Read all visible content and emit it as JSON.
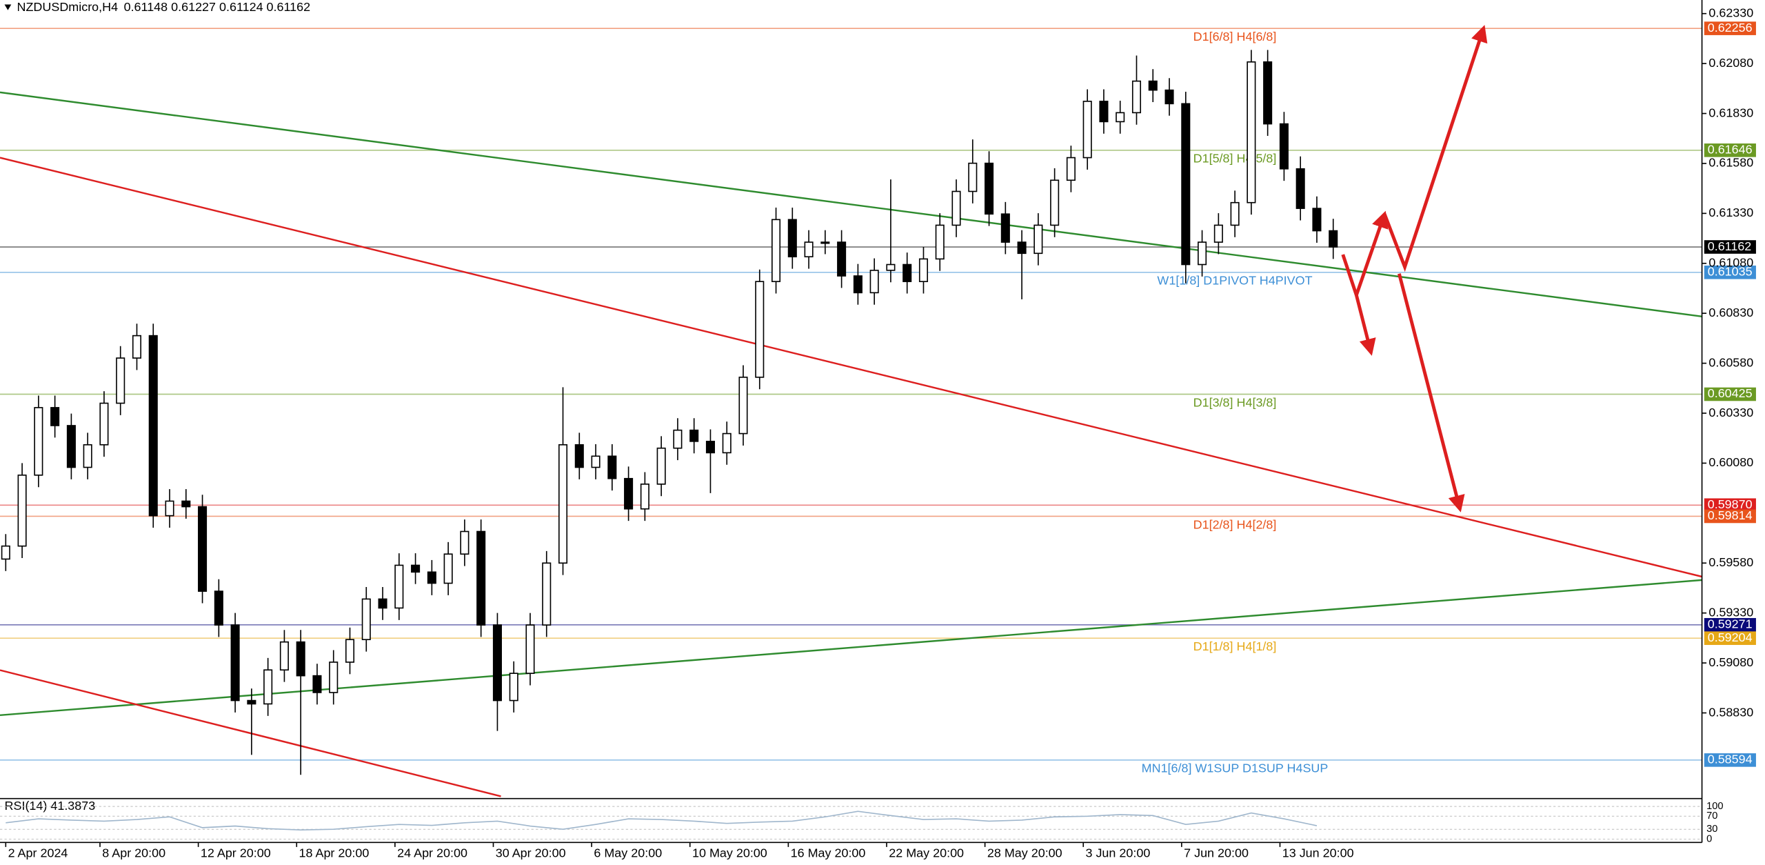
{
  "header": {
    "symbol": "NZDUSDmicro,H4",
    "ohlc": "0.61148 0.61227 0.61124 0.61162"
  },
  "chart_data": [
    {
      "type": "candlestick",
      "x": [
        0,
        4,
        8,
        12,
        16,
        20,
        24,
        28,
        32,
        36,
        40,
        44,
        48,
        52,
        56,
        60,
        64,
        68,
        72,
        76,
        80,
        84,
        88,
        92,
        96,
        100,
        104,
        108,
        112,
        116,
        120,
        124,
        128,
        132,
        136,
        140,
        144,
        148,
        152,
        156,
        160,
        164,
        168,
        172,
        176,
        180,
        184,
        188,
        192,
        196,
        200,
        204,
        208,
        212,
        216,
        220,
        224,
        228,
        232,
        236,
        240,
        244,
        248,
        252,
        256,
        260,
        264,
        268,
        272,
        276,
        280,
        284,
        288,
        292,
        296,
        300,
        304,
        308,
        312,
        316,
        320,
        324
      ],
      "open": [
        0.596,
        0.59665,
        0.6002,
        0.60358,
        0.60268,
        0.60059,
        0.60172,
        0.6038,
        0.60606,
        0.60718,
        0.59817,
        0.5989,
        0.59862,
        0.59439,
        0.5927,
        0.58892,
        0.58875,
        0.59045,
        0.59185,
        0.59016,
        0.58932,
        0.59084,
        0.59197,
        0.594,
        0.59355,
        0.59569,
        0.59535,
        0.59479,
        0.59625,
        0.59738,
        0.5927,
        0.58892,
        0.59028,
        0.5927,
        0.5958,
        0.60172,
        0.60059,
        0.60115,
        0.60003,
        0.59851,
        0.59975,
        0.60155,
        0.60245,
        0.60189,
        0.60132,
        0.60228,
        0.6051,
        0.60989,
        0.61299,
        0.61113,
        0.61186,
        0.61186,
        0.61017,
        0.60933,
        0.61045,
        0.61074,
        0.60989,
        0.61102,
        0.61271,
        0.6144,
        0.61581,
        0.61327,
        0.61186,
        0.6113,
        0.61271,
        0.61496,
        0.61609,
        0.61891,
        0.61789,
        0.61834,
        0.61992,
        0.61947,
        0.61879,
        0.61074,
        0.61186,
        0.61271,
        0.61384,
        0.62088,
        0.61778,
        0.61553,
        0.61355,
        0.61243
      ],
      "high": [
        0.59725,
        0.6008,
        0.60418,
        0.60418,
        0.60328,
        0.60232,
        0.6044,
        0.60666,
        0.60778,
        0.60778,
        0.5995,
        0.5995,
        0.59922,
        0.59499,
        0.5933,
        0.58952,
        0.59105,
        0.59245,
        0.59245,
        0.59076,
        0.59144,
        0.59257,
        0.5946,
        0.5946,
        0.59629,
        0.59629,
        0.59595,
        0.59685,
        0.59798,
        0.59798,
        0.5933,
        0.59088,
        0.5933,
        0.5964,
        0.6046,
        0.60232,
        0.60175,
        0.60175,
        0.60063,
        0.60035,
        0.60215,
        0.60305,
        0.60305,
        0.60249,
        0.60288,
        0.6057,
        0.61049,
        0.61359,
        0.61359,
        0.61246,
        0.61246,
        0.61246,
        0.61077,
        0.61105,
        0.615,
        0.61134,
        0.61162,
        0.61331,
        0.615,
        0.617,
        0.61641,
        0.61387,
        0.61246,
        0.61331,
        0.61556,
        0.61669,
        0.61951,
        0.61951,
        0.61894,
        0.6212,
        0.62052,
        0.62007,
        0.61939,
        0.61246,
        0.61331,
        0.61444,
        0.62148,
        0.62148,
        0.61838,
        0.61615,
        0.61415,
        0.61303
      ],
      "low": [
        0.5954,
        0.59605,
        0.5996,
        0.60208,
        0.59999,
        0.59999,
        0.60112,
        0.6032,
        0.60546,
        0.59757,
        0.59757,
        0.59802,
        0.59379,
        0.5921,
        0.58832,
        0.5862,
        0.58815,
        0.58985,
        0.5852,
        0.58872,
        0.58872,
        0.59024,
        0.59137,
        0.59295,
        0.59295,
        0.59475,
        0.59419,
        0.59419,
        0.59565,
        0.5921,
        0.5874,
        0.58832,
        0.58968,
        0.5921,
        0.5952,
        0.59999,
        0.59999,
        0.59943,
        0.59791,
        0.59791,
        0.59915,
        0.60095,
        0.60129,
        0.5993,
        0.60072,
        0.60168,
        0.6045,
        0.60929,
        0.61053,
        0.61053,
        0.61126,
        0.60957,
        0.60873,
        0.60873,
        0.60985,
        0.60929,
        0.60929,
        0.61042,
        0.61211,
        0.6138,
        0.61267,
        0.61126,
        0.609,
        0.6107,
        0.61211,
        0.61436,
        0.61549,
        0.61729,
        0.61729,
        0.61774,
        0.61887,
        0.61819,
        0.6098,
        0.61014,
        0.61126,
        0.61211,
        0.61324,
        0.61718,
        0.61493,
        0.61295,
        0.61183,
        0.61102
      ],
      "close": [
        0.59665,
        0.6002,
        0.60358,
        0.60268,
        0.60059,
        0.60172,
        0.6038,
        0.60606,
        0.60718,
        0.59817,
        0.5989,
        0.59862,
        0.59439,
        0.5927,
        0.58892,
        0.58875,
        0.59045,
        0.59185,
        0.59016,
        0.58932,
        0.59084,
        0.59197,
        0.594,
        0.59355,
        0.59569,
        0.59535,
        0.59479,
        0.59625,
        0.59738,
        0.5927,
        0.58892,
        0.59028,
        0.5927,
        0.5958,
        0.60172,
        0.60059,
        0.60115,
        0.60003,
        0.59851,
        0.59975,
        0.60155,
        0.60245,
        0.60189,
        0.60132,
        0.60228,
        0.6051,
        0.60989,
        0.61299,
        0.61113,
        0.61186,
        0.61186,
        0.61017,
        0.60933,
        0.61045,
        0.61074,
        0.60989,
        0.61102,
        0.61271,
        0.6144,
        0.61581,
        0.61327,
        0.61186,
        0.6113,
        0.61271,
        0.61496,
        0.61609,
        0.61891,
        0.61789,
        0.61834,
        0.61992,
        0.61947,
        0.61879,
        0.61074,
        0.61186,
        0.61271,
        0.61384,
        0.62088,
        0.61778,
        0.61553,
        0.61355,
        0.61243,
        0.61162
      ],
      "up_color": "#ffffff",
      "down_color": "#000000",
      "xlim": [
        -1.4,
        414
      ],
      "ylim": [
        0.58407,
        0.62398
      ],
      "yticks": [
        {
          "value": 0.6233,
          "label": "0.62330"
        },
        {
          "value": 0.6208,
          "label": "0.62080"
        },
        {
          "value": 0.6183,
          "label": "0.61830"
        },
        {
          "value": 0.6158,
          "label": "0.61580"
        },
        {
          "value": 0.6133,
          "label": "0.61330"
        },
        {
          "value": 0.6108,
          "label": "0.61080"
        },
        {
          "value": 0.6083,
          "label": "0.60830"
        },
        {
          "value": 0.6058,
          "label": "0.60580"
        },
        {
          "value": 0.6033,
          "label": "0.60330"
        },
        {
          "value": 0.6008,
          "label": "0.60080"
        },
        {
          "value": 0.5958,
          "label": "0.59580"
        },
        {
          "value": 0.5933,
          "label": "0.59330"
        },
        {
          "value": 0.5908,
          "label": "0.59080"
        },
        {
          "value": 0.5883,
          "label": "0.58830"
        }
      ],
      "xticks": [
        {
          "value": 0,
          "label": "2 Apr 2024"
        },
        {
          "value": 23,
          "label": "8 Apr 20:00"
        },
        {
          "value": 47,
          "label": "12 Apr 20:00"
        },
        {
          "value": 71,
          "label": "18 Apr 20:00"
        },
        {
          "value": 95,
          "label": "24 Apr 20:00"
        },
        {
          "value": 119,
          "label": "30 Apr 20:00"
        },
        {
          "value": 143,
          "label": "6 May 20:00"
        },
        {
          "value": 167,
          "label": "10 May 20:00"
        },
        {
          "value": 191,
          "label": "16 May 20:00"
        },
        {
          "value": 215,
          "label": "22 May 20:00"
        },
        {
          "value": 239,
          "label": "28 May 20:00"
        },
        {
          "value": 263,
          "label": "3 Jun 20:00"
        },
        {
          "value": 287,
          "label": "7 Jun 20:00"
        },
        {
          "value": 311,
          "label": "13 Jun 20:00"
        }
      ],
      "levels": [
        {
          "price": 0.62256,
          "text": "D1[6/8] H4[6/8]",
          "color": "#e8541c"
        },
        {
          "price": 0.61646,
          "text": "D1[5/8] H4[5/8]",
          "color": "#6b9a23"
        },
        {
          "price": 0.61162,
          "color": "#000000"
        },
        {
          "price": 0.61035,
          "text": "W1[1/8] D1PIVOT H4PIVOT",
          "color": "#3d8fd6"
        },
        {
          "price": 0.60425,
          "text": "D1[3/8] H4[3/8]",
          "color": "#6b9a23"
        },
        {
          "price": {
            "value": 0.5987,
            "label": "0.59870"
          },
          "color": "#dd1f1f"
        },
        {
          "price": 0.59814,
          "text": "D1[2/8] H4[2/8]",
          "color": "#e8541c"
        },
        {
          "price": 0.59271,
          "color": "#0a0a7a"
        },
        {
          "price": 0.59204,
          "text": "D1[1/8] H4[1/8]",
          "color": "#e6a817"
        },
        {
          "price": 0.58594,
          "text": "MN1[6/8] W1SUP D1SUP H4SUP",
          "color": "#3d8fd6"
        }
      ]
    },
    {
      "type": "line",
      "title": "RSI(14) 41.3873",
      "x": [
        0,
        8,
        16,
        24,
        32,
        40,
        48,
        56,
        64,
        72,
        80,
        88,
        96,
        104,
        112,
        120,
        128,
        136,
        144,
        152,
        160,
        168,
        176,
        184,
        192,
        200,
        208,
        216,
        224,
        232,
        240,
        248,
        256,
        264,
        272,
        280,
        288,
        296,
        304,
        312,
        320
      ],
      "values": [
        50,
        62,
        58,
        55,
        60,
        68,
        35,
        40,
        32,
        28,
        30,
        38,
        45,
        42,
        50,
        55,
        40,
        30,
        45,
        62,
        60,
        55,
        48,
        52,
        55,
        68,
        85,
        72,
        60,
        62,
        55,
        58,
        68,
        70,
        75,
        72,
        45,
        55,
        80,
        62,
        41
      ],
      "color": "#9fb6cc",
      "ylim": [
        0,
        100
      ],
      "yticks": [
        0,
        30,
        70,
        100
      ]
    }
  ]
}
